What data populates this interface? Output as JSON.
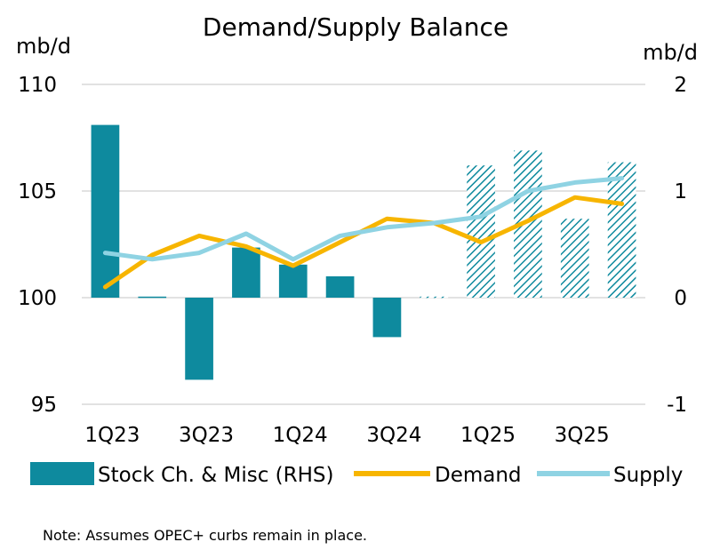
{
  "chart_data": {
    "type": "bar+line",
    "title": "Demand/Supply Balance",
    "left_axis_unit": "mb/d",
    "right_axis_unit": "mb/d",
    "left_ylim": [
      95,
      110
    ],
    "right_ylim": [
      -1,
      2
    ],
    "left_ticks": [
      "110",
      "105",
      "100",
      "95"
    ],
    "right_ticks": [
      "2",
      "1",
      "0",
      "-1"
    ],
    "categories": [
      "1Q23",
      "2Q23",
      "3Q23",
      "4Q23",
      "1Q24",
      "2Q24",
      "3Q24",
      "4Q24",
      "1Q25",
      "2Q25",
      "3Q25",
      "4Q25"
    ],
    "x_tick_labels": [
      "1Q23",
      "",
      "3Q23",
      "",
      "1Q24",
      "",
      "3Q24",
      "",
      "1Q25",
      "",
      "3Q25",
      ""
    ],
    "series": [
      {
        "name": "Stock Ch. & Misc (RHS)",
        "type": "bar",
        "axis": "right",
        "color": "#0e8a9e",
        "values": [
          1.62,
          0.01,
          -0.77,
          0.47,
          0.31,
          0.2,
          -0.37,
          0.01,
          1.24,
          1.38,
          0.74,
          1.27
        ],
        "forecast": [
          false,
          false,
          false,
          false,
          false,
          false,
          false,
          true,
          true,
          true,
          true,
          true
        ]
      },
      {
        "name": "Demand",
        "type": "line",
        "axis": "left",
        "color": "#f7b500",
        "values": [
          100.5,
          102.0,
          102.9,
          102.4,
          101.5,
          102.6,
          103.7,
          103.5,
          102.6,
          103.6,
          104.7,
          104.4
        ]
      },
      {
        "name": "Supply",
        "type": "line",
        "axis": "left",
        "color": "#8fd3e3",
        "values": [
          102.1,
          101.8,
          102.1,
          103.0,
          101.8,
          102.9,
          103.3,
          103.5,
          103.8,
          105.0,
          105.4,
          105.6
        ]
      }
    ],
    "legend": [
      "Stock Ch. & Misc (RHS)",
      "Demand",
      "Supply"
    ],
    "note": "Note: Assumes OPEC+ curbs remain in place."
  }
}
